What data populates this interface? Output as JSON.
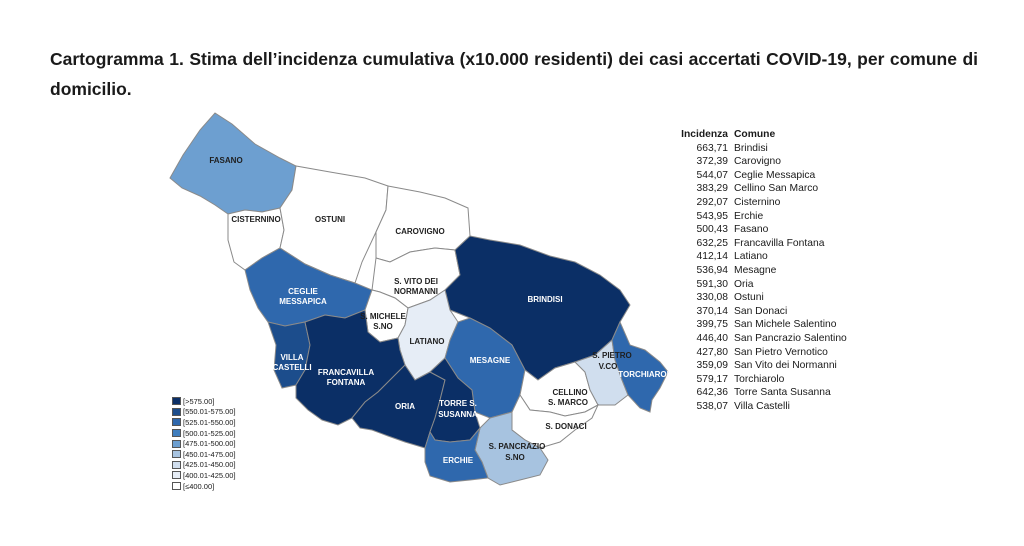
{
  "title": "Cartogramma 1. Stima dell’incidenza cumulativa (x10.000 residenti) dei casi accertati COVID-19, per comune di domicilio.",
  "colors": {
    "c1": "#0b2f66",
    "c2": "#1c4d8c",
    "c3": "#2f68ad",
    "c4": "#3f7ebe",
    "c5": "#6d9fd0",
    "c6": "#a7c3e0",
    "c7": "#d0deee",
    "c8": "#e6edf6",
    "c9": "#ffffff"
  },
  "legend": [
    {
      "label": "[>575.00]",
      "color": "#0b2f66"
    },
    {
      "label": "[550.01-575.00]",
      "color": "#1c4d8c"
    },
    {
      "label": "[525.01-550.00]",
      "color": "#2f68ad"
    },
    {
      "label": "[500.01-525.00]",
      "color": "#3f7ebe"
    },
    {
      "label": "[475.01-500.00]",
      "color": "#6d9fd0"
    },
    {
      "label": "[450.01-475.00]",
      "color": "#a7c3e0"
    },
    {
      "label": "[425.01-450.00]",
      "color": "#d0deee"
    },
    {
      "label": "[400.01-425.00]",
      "color": "#e6edf6"
    },
    {
      "label": "[≤400.00]",
      "color": "#ffffff"
    }
  ],
  "table": {
    "header_incidenza": "Incidenza",
    "header_comune": "Comune",
    "rows": [
      {
        "value": "663,71",
        "name": "Brindisi"
      },
      {
        "value": "372,39",
        "name": "Carovigno"
      },
      {
        "value": "544,07",
        "name": "Ceglie Messapica"
      },
      {
        "value": "383,29",
        "name": "Cellino San Marco"
      },
      {
        "value": "292,07",
        "name": "Cisternino"
      },
      {
        "value": "543,95",
        "name": "Erchie"
      },
      {
        "value": "500,43",
        "name": "Fasano"
      },
      {
        "value": "632,25",
        "name": "Francavilla Fontana"
      },
      {
        "value": "412,14",
        "name": "Latiano"
      },
      {
        "value": "536,94",
        "name": "Mesagne"
      },
      {
        "value": "591,30",
        "name": "Oria"
      },
      {
        "value": "330,08",
        "name": "Ostuni"
      },
      {
        "value": "370,14",
        "name": "San Donaci"
      },
      {
        "value": "399,75",
        "name": "San Michele Salentino"
      },
      {
        "value": "446,40",
        "name": "San Pancrazio Salentino"
      },
      {
        "value": "427,80",
        "name": "San Pietro Vernotico"
      },
      {
        "value": "359,09",
        "name": "San Vito dei Normanni"
      },
      {
        "value": "579,17",
        "name": "Torchiarolo"
      },
      {
        "value": "642,36",
        "name": "Torre Santa Susanna"
      },
      {
        "value": "538,07",
        "name": "Villa Castelli"
      }
    ]
  },
  "map_labels": {
    "fasano": "FASANO",
    "cisternino": "CISTERNINO",
    "ostuni": "OSTUNI",
    "carovigno": "CAROVIGNO",
    "ceglie_1": "CEGLIE",
    "ceglie_2": "MESSAPICA",
    "svito_1": "S. VITO DEI",
    "svito_2": "NORMANNI",
    "smichele_1": "S. MICHELE",
    "smichele_2": "S.NO",
    "latiano": "LATIANO",
    "brindisi": "BRINDISI",
    "villa_1": "VILLA",
    "villa_2": "CASTELLI",
    "francavilla_1": "FRANCAVILLA",
    "francavilla_2": "FONTANA",
    "mesagne": "MESAGNE",
    "spietro_1": "S. PIETRO",
    "spietro_2": "V.CO",
    "torchiarolo": "TORCHIAROLO",
    "oria": "ORIA",
    "torre_1": "TORRE S.",
    "torre_2": "SUSANNA",
    "cellino_1": "CELLINO",
    "cellino_2": "S. MARCO",
    "sdonaci": "S. DONACI",
    "spancrazio_1": "S. PANCRAZIO",
    "spancrazio_2": "S.NO",
    "erchie": "ERCHIE"
  }
}
